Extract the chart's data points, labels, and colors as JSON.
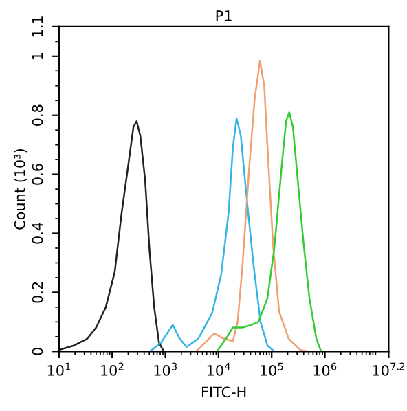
{
  "chart_data": {
    "type": "line",
    "title": "P1",
    "xlabel": "FITC-H",
    "ylabel": "Count (10³)",
    "log": "x",
    "xlim": [
      10,
      15848932
    ],
    "xticks": [
      {
        "value": 10,
        "label": "10$^{1}$"
      },
      {
        "value": 100,
        "label": "10$^{2}$"
      },
      {
        "value": 1000,
        "label": "10$^{3}$"
      },
      {
        "value": 10000,
        "label": "10$^{4}$"
      },
      {
        "value": 100000,
        "label": "10$^{5}$"
      },
      {
        "value": 1000000,
        "label": "10$^{6}$"
      },
      {
        "value": 15848932,
        "label": "10$^{7.2}$"
      }
    ],
    "ylim": [
      0,
      1.1
    ],
    "yticks": [
      0,
      0.2,
      0.4,
      0.6,
      0.8,
      1,
      1.1
    ],
    "grid": false,
    "marker": "none",
    "line_style": "solid",
    "series": [
      {
        "color": "#222222",
        "x": [
          10,
          19,
          34,
          50,
          76,
          112,
          151,
          204,
          251,
          288,
          339,
          417,
          501,
          617,
          759,
          933
        ],
        "values": [
          0.005,
          0.02,
          0.043,
          0.081,
          0.15,
          0.27,
          0.47,
          0.64,
          0.76,
          0.78,
          0.73,
          0.58,
          0.35,
          0.15,
          0.03,
          0
        ]
      },
      {
        "color": "#33b5e5",
        "x": [
          513,
          832,
          1380,
          1862,
          2512,
          4169,
          7586,
          11220,
          15490,
          18620,
          21880,
          26300,
          33880,
          45710,
          61660,
          83180,
          112200
        ],
        "values": [
          0,
          0.03,
          0.09,
          0.043,
          0.015,
          0.043,
          0.13,
          0.26,
          0.47,
          0.69,
          0.79,
          0.73,
          0.52,
          0.29,
          0.1,
          0.02,
          0
        ]
      },
      {
        "color": "#f0a070",
        "x": [
          3802,
          5623,
          8318,
          12590,
          18620,
          22910,
          28180,
          38020,
          47860,
          60260,
          72440,
          87100,
          107200,
          138000,
          208900,
          346700,
          467700
        ],
        "values": [
          0,
          0.03,
          0.061,
          0.043,
          0.035,
          0.1,
          0.29,
          0.63,
          0.855,
          0.985,
          0.9,
          0.63,
          0.35,
          0.135,
          0.043,
          0.005,
          0
        ]
      },
      {
        "color": "#33cc33",
        "x": [
          9333,
          13800,
          18620,
          28180,
          41690,
          56230,
          83180,
          112200,
          154900,
          186200,
          213800,
          251200,
          309000,
          398100,
          512900,
          691800,
          851100
        ],
        "values": [
          0,
          0.043,
          0.081,
          0.081,
          0.09,
          0.1,
          0.18,
          0.35,
          0.63,
          0.78,
          0.81,
          0.76,
          0.58,
          0.365,
          0.18,
          0.043,
          0
        ]
      }
    ]
  }
}
